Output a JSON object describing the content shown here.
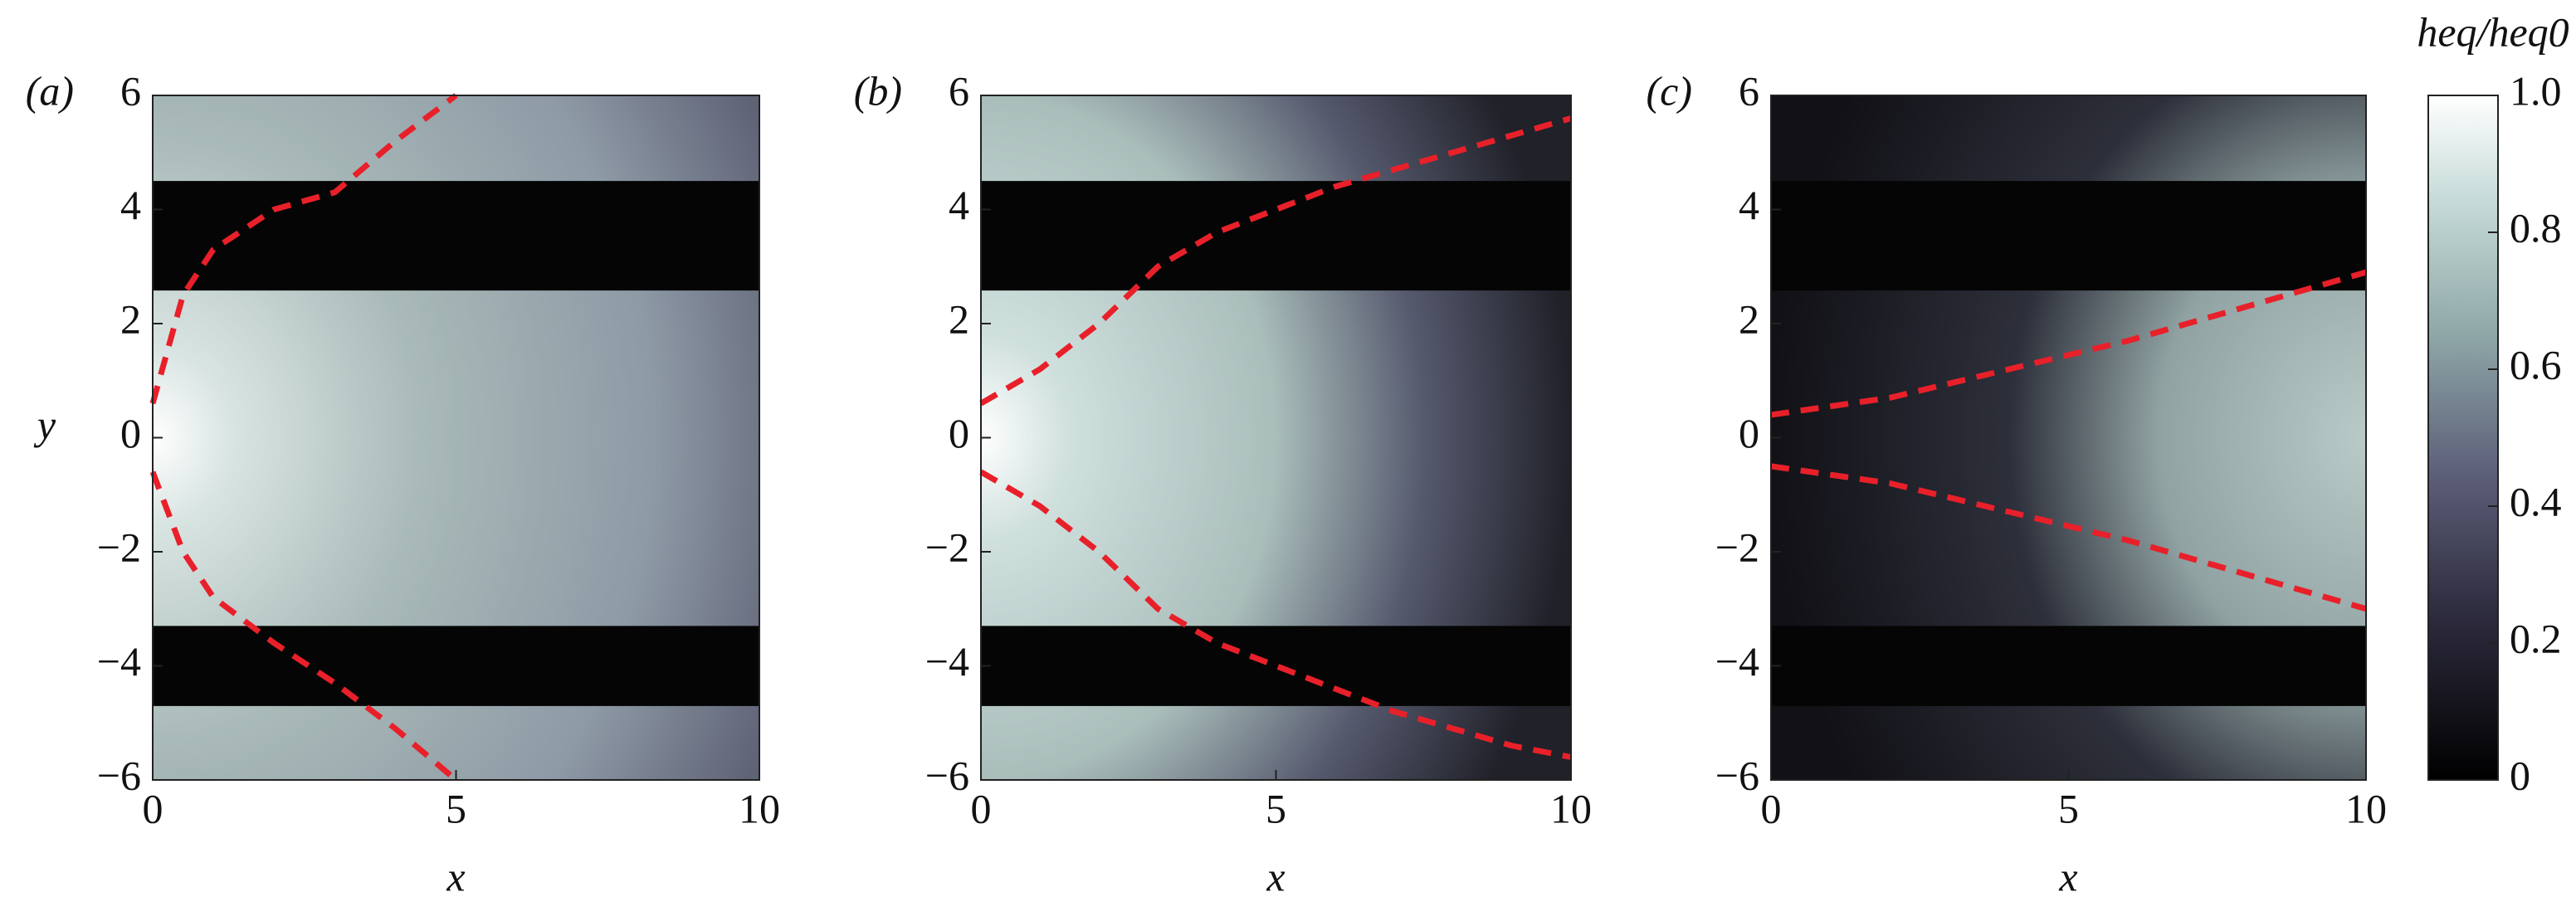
{
  "chart_data": [
    {
      "type": "heatmap",
      "panel_label": "(a)",
      "xlabel": "x",
      "ylabel": "y",
      "xlim": [
        0,
        10
      ],
      "xticks": [
        0,
        5,
        10
      ],
      "ylim": [
        -6,
        6
      ],
      "yticks": [
        {
          "value": -6,
          "label": "−6"
        },
        {
          "value": -4,
          "label": "−4"
        },
        {
          "value": -2,
          "label": "−2"
        },
        0,
        2,
        4,
        6
      ],
      "series": [
        {
          "color": "#e8202a",
          "x": [
            0,
            0.5,
            1,
            2,
            3,
            4,
            5
          ],
          "values": [
            0.6,
            2.5,
            3.3,
            4,
            4.3,
            5.2,
            6
          ]
        },
        {
          "color": "#e8202a",
          "x": [
            0,
            0.5,
            1,
            2,
            3,
            4,
            5
          ],
          "values": [
            -0.6,
            -2,
            -2.8,
            -3.6,
            -4.3,
            -5.1,
            -6
          ]
        }
      ]
    },
    {
      "type": "heatmap",
      "panel_label": "(b)",
      "xlabel": "x",
      "xlim": [
        0,
        10
      ],
      "xticks": [
        0,
        5,
        10
      ],
      "ylim": [
        -6,
        6
      ],
      "yticks": [
        {
          "value": -6,
          "label": "−6"
        },
        {
          "value": -4,
          "label": "−4"
        },
        {
          "value": -2,
          "label": "−2"
        },
        0,
        2,
        4,
        6
      ],
      "series": [
        {
          "color": "#e8202a",
          "x": [
            0,
            1,
            2,
            3,
            4,
            5,
            6,
            7,
            8,
            9,
            10
          ],
          "values": [
            0.6,
            1.2,
            2,
            3,
            3.6,
            4,
            4.4,
            4.7,
            5,
            5.3,
            5.6
          ]
        },
        {
          "color": "#e8202a",
          "x": [
            0,
            1,
            2,
            3,
            4,
            5,
            6,
            7,
            8,
            9,
            10
          ],
          "values": [
            -0.6,
            -1.2,
            -2,
            -3,
            -3.6,
            -4,
            -4.4,
            -4.8,
            -5.1,
            -5.4,
            -5.6
          ]
        }
      ]
    },
    {
      "type": "heatmap",
      "panel_label": "(c)",
      "xlabel": "x",
      "xlim": [
        0,
        10
      ],
      "xticks": [
        0,
        5,
        10
      ],
      "ylim": [
        -6,
        6
      ],
      "yticks": [
        {
          "value": -6,
          "label": "−6"
        },
        {
          "value": -4,
          "label": "−4"
        },
        {
          "value": -2,
          "label": "−2"
        },
        0,
        2,
        4,
        6
      ],
      "series": [
        {
          "color": "#e8202a",
          "x": [
            0,
            2,
            4,
            6,
            8,
            10
          ],
          "values": [
            0.4,
            0.7,
            1.2,
            1.7,
            2.3,
            2.9
          ]
        },
        {
          "color": "#e8202a",
          "x": [
            0,
            2,
            4,
            6,
            8,
            10
          ],
          "values": [
            -0.5,
            -0.8,
            -1.3,
            -1.8,
            -2.4,
            -3
          ]
        }
      ],
      "colorbar": {
        "label": "heq/heq0",
        "lim": [
          0,
          1
        ],
        "ticks": [
          0,
          0.2,
          0.4,
          0.6,
          0.8,
          {
            "value": 1,
            "label": "1.0"
          }
        ]
      }
    }
  ]
}
